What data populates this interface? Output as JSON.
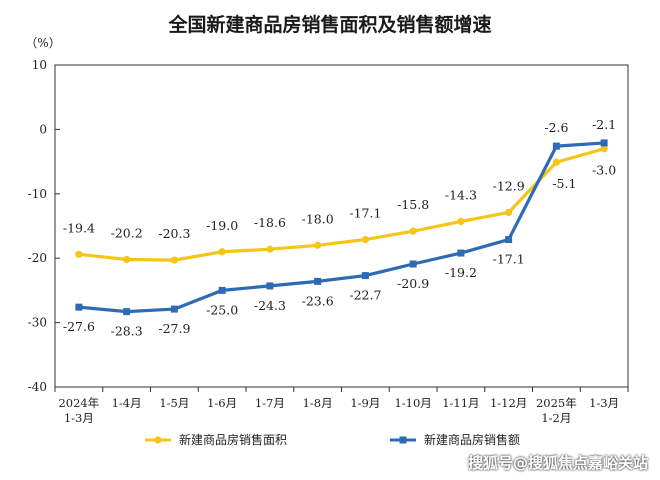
{
  "chart_data": {
    "type": "line",
    "title": "全国新建商品房销售面积及销售额增速",
    "ylabel": "（%）",
    "ylim": [
      -40,
      10
    ],
    "yticks": [
      "10",
      "0",
      "-10",
      "-20",
      "-30",
      "-40"
    ],
    "grid": false,
    "legend_position": "bottom",
    "categories": [
      [
        "2024年",
        "1-3月"
      ],
      [
        "1-4月"
      ],
      [
        "1-5月"
      ],
      [
        "1-6月"
      ],
      [
        "1-7月"
      ],
      [
        "1-8月"
      ],
      [
        "1-9月"
      ],
      [
        "1-10月"
      ],
      [
        "1-11月"
      ],
      [
        "1-12月"
      ],
      [
        "2025年",
        "1-2月"
      ],
      [
        "1-3月"
      ]
    ],
    "series": [
      {
        "name": "新建商品房销售面积",
        "color": "#f5c518",
        "values": [
          -19.4,
          -20.2,
          -20.3,
          -19.0,
          -18.6,
          -18.0,
          -17.1,
          -15.8,
          -14.3,
          -12.9,
          -5.1,
          -3.0
        ],
        "labels": [
          "-19.4",
          "-20.2",
          "-20.3",
          "-19.0",
          "-18.6",
          "-18.0",
          "-17.1",
          "-15.8",
          "-14.3",
          "-12.9",
          "-5.1",
          "-3.0"
        ]
      },
      {
        "name": "新建商品房销售额",
        "color": "#2e6bb5",
        "values": [
          -27.6,
          -28.3,
          -27.9,
          -25.0,
          -24.3,
          -23.6,
          -22.7,
          -20.9,
          -19.2,
          -17.1,
          -2.6,
          -2.1
        ],
        "labels": [
          "-27.6",
          "-28.3",
          "-27.9",
          "-25.0",
          "-24.3",
          "-23.6",
          "-22.7",
          "-20.9",
          "-19.2",
          "-17.1",
          "-2.6",
          "-2.1"
        ]
      }
    ]
  },
  "watermark": "搜狐号@搜狐焦点嘉峪关站"
}
